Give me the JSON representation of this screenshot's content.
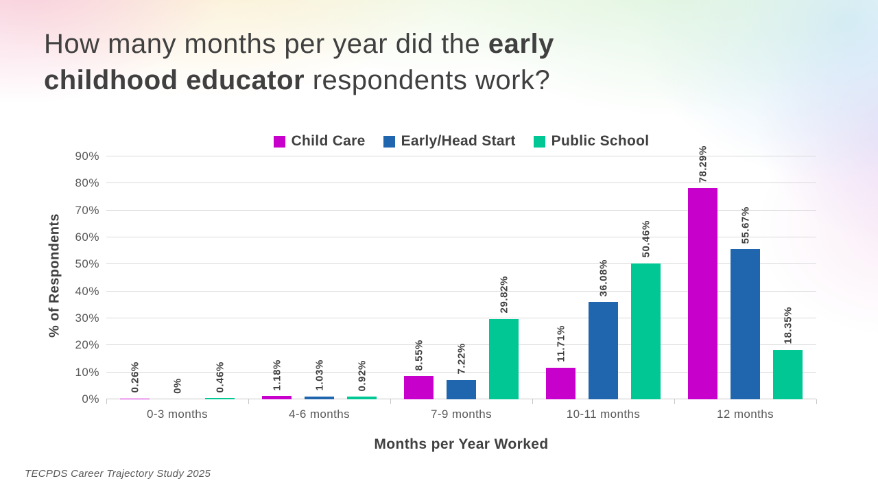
{
  "title": {
    "line1_regular": "How many months per year did the ",
    "line1_bold": "early",
    "line2_bold": "childhood educator",
    "line2_regular": " respondents work?"
  },
  "footer": "TECPDS Career Trajectory Study 2025",
  "chart_data": {
    "type": "bar",
    "title": "",
    "categories": [
      "0-3 months",
      "4-6 months",
      "7-9 months",
      "10-11 months",
      "12 months"
    ],
    "series": [
      {
        "name": "Child Care",
        "color": "#C800CC",
        "values": [
          0.26,
          1.18,
          8.55,
          11.71,
          78.29
        ],
        "labels": [
          "0.26%",
          "1.18%",
          "8.55%",
          "11.71%",
          "78.29%"
        ]
      },
      {
        "name": "Early/Head Start",
        "color": "#2066AE",
        "values": [
          0,
          1.03,
          7.22,
          36.08,
          55.67
        ],
        "labels": [
          "0%",
          "1.03%",
          "7.22%",
          "36.08%",
          "55.67%"
        ]
      },
      {
        "name": "Public School",
        "color": "#00C794",
        "values": [
          0.46,
          0.92,
          29.82,
          50.46,
          18.35
        ],
        "labels": [
          "0.46%",
          "0.92%",
          "29.82%",
          "50.46%",
          "18.35%"
        ]
      }
    ],
    "xlabel": "Months per Year Worked",
    "ylabel": "% of Respondents",
    "ylim": [
      0,
      90
    ],
    "ytick_step": 10,
    "yticks": [
      "0%",
      "10%",
      "20%",
      "30%",
      "40%",
      "50%",
      "60%",
      "70%",
      "80%",
      "90%"
    ],
    "grid": true,
    "gridline_color": "#D9D9D9",
    "legend_position": "top-center"
  }
}
